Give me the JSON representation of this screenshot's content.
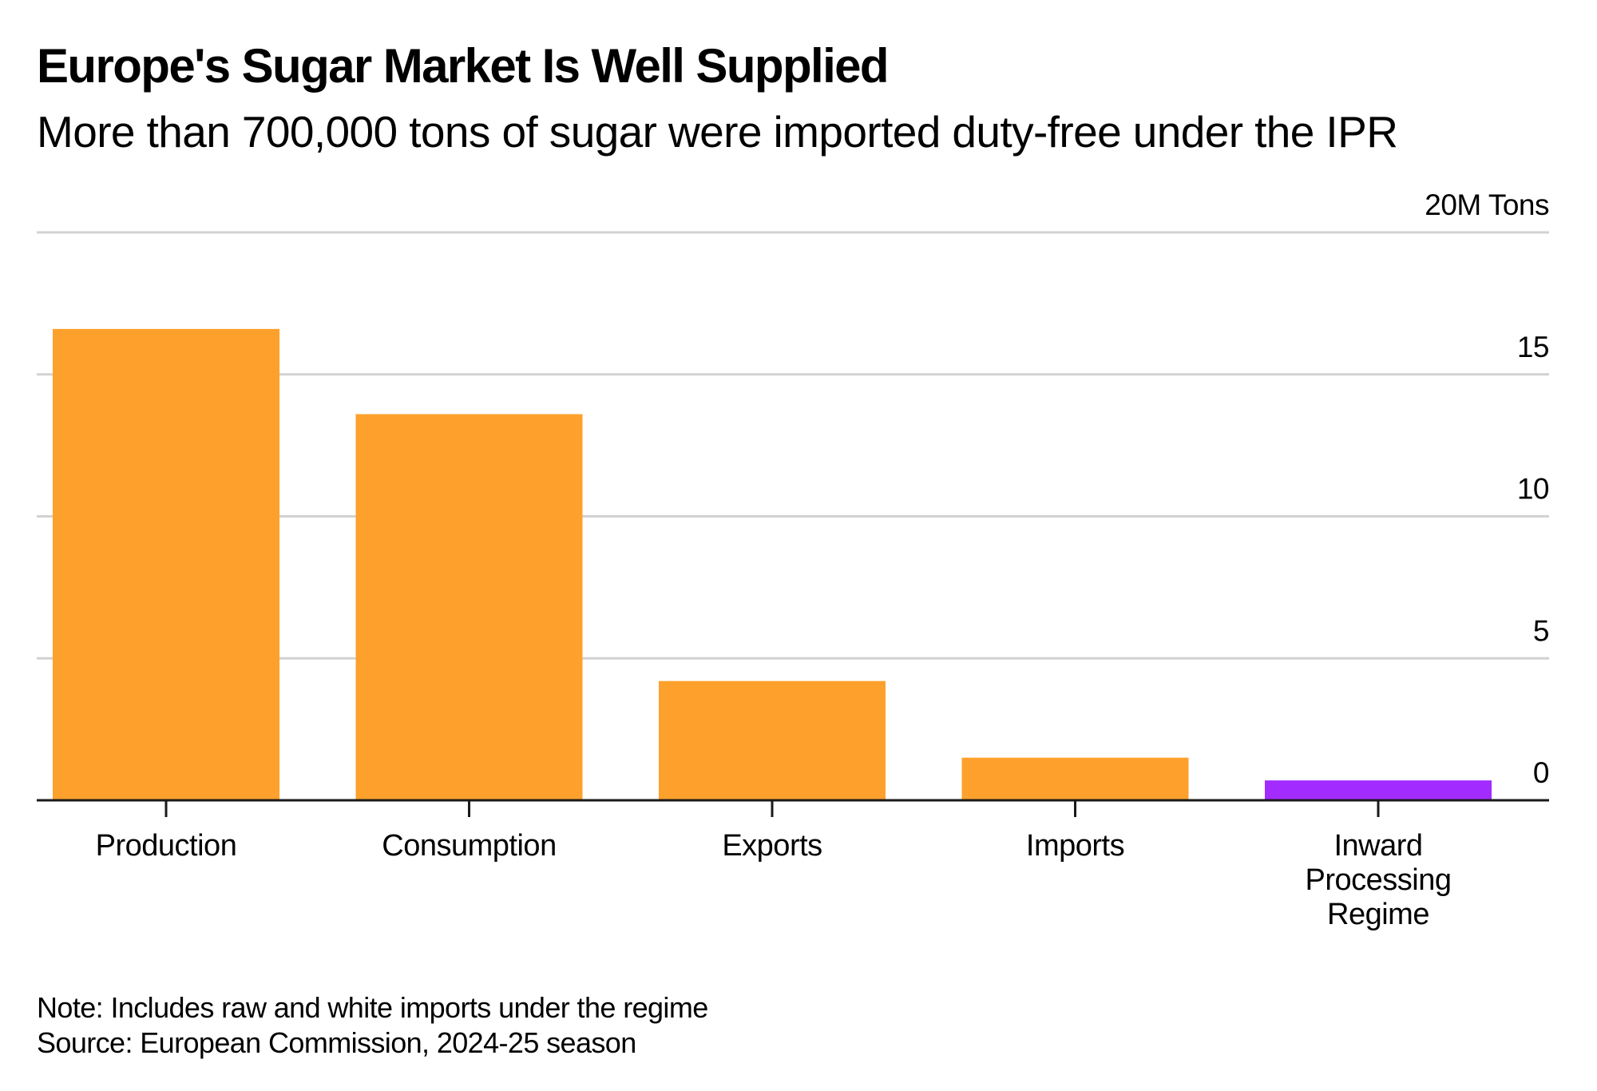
{
  "header": {
    "title": "Europe's Sugar Market Is Well Supplied",
    "subtitle": "More than 700,000 tons of sugar were imported duty-free under the IPR"
  },
  "footer": {
    "note": "Note: Includes raw and white imports under the regime",
    "source": "Source: European Commission, 2024-25 season"
  },
  "colors": {
    "bar_default": "#FDA12C",
    "bar_highlight": "#A22CFF",
    "gridline": "#D2D2D2",
    "axis": "#1A1A1A",
    "text": "#000000"
  },
  "chart_data": {
    "type": "bar",
    "title": "Europe's Sugar Market Is Well Supplied",
    "subtitle": "More than 700,000 tons of sugar were imported duty-free under the IPR",
    "xlabel": "",
    "ylabel": "M Tons",
    "unit_label": "20M Tons",
    "categories": [
      [
        "Production"
      ],
      [
        "Consumption"
      ],
      [
        "Exports"
      ],
      [
        "Imports"
      ],
      [
        "Inward",
        "Processing",
        "Regime"
      ]
    ],
    "category_names": [
      "Production",
      "Consumption",
      "Exports",
      "Imports",
      "Inward Processing Regime"
    ],
    "values": [
      16.6,
      13.6,
      4.2,
      1.5,
      0.7
    ],
    "highlight_index": 4,
    "ylim": [
      0,
      20
    ],
    "yticks": [
      0,
      5,
      10,
      15,
      20
    ],
    "ytick_labels": [
      "0",
      "5",
      "10",
      "15",
      "20M Tons"
    ],
    "y_axis_position": "right",
    "grid": true,
    "legend": "none"
  }
}
